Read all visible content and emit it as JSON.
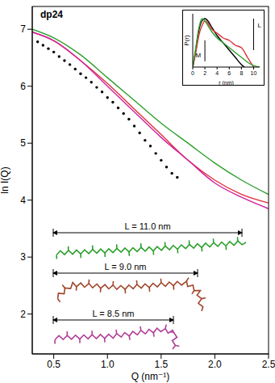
{
  "chart_data": [
    {
      "type": "line",
      "title": "dp24",
      "xlabel": "Q (nm⁻¹)",
      "ylabel": "ln I(Q)",
      "xlim": [
        0.3,
        2.5
      ],
      "xticks": [
        0.5,
        {
          "value": 1,
          "label": "1.0"
        },
        1.5,
        {
          "value": 2,
          "label": "2.0"
        },
        2.5
      ],
      "ylim": [
        1.3,
        7.4
      ],
      "yticks": [
        2,
        3,
        4,
        5,
        6,
        7
      ],
      "series": [
        {
          "type": "scatter",
          "color": "#000000",
          "marker": "circle",
          "x": [
            0.35,
            0.4,
            0.45,
            0.5,
            0.55,
            0.6,
            0.65,
            0.7,
            0.75,
            0.8,
            0.85,
            0.9,
            0.95,
            1.0,
            1.05,
            1.1,
            1.15,
            1.2,
            1.25,
            1.3,
            1.35,
            1.4,
            1.45,
            1.5,
            1.55,
            1.6,
            1.65
          ],
          "values": [
            6.78,
            6.72,
            6.66,
            6.6,
            6.52,
            6.45,
            6.38,
            6.3,
            6.22,
            6.15,
            6.07,
            5.98,
            5.9,
            5.8,
            5.72,
            5.62,
            5.52,
            5.42,
            5.3,
            5.18,
            5.05,
            4.95,
            4.82,
            4.7,
            4.58,
            4.47,
            4.4
          ]
        },
        {
          "type": "line",
          "color": "#2ca02c",
          "x": [
            0.3,
            0.5,
            0.75,
            1.0,
            1.25,
            1.5,
            1.75,
            2.0,
            2.25,
            2.5
          ],
          "values": [
            7.0,
            6.85,
            6.55,
            6.15,
            5.75,
            5.35,
            5.0,
            4.65,
            4.35,
            4.1
          ]
        },
        {
          "type": "line",
          "color": "#e0303a",
          "x": [
            0.3,
            0.5,
            0.75,
            1.0,
            1.25,
            1.5,
            1.75,
            2.0,
            2.25,
            2.5
          ],
          "values": [
            6.95,
            6.8,
            6.45,
            6.05,
            5.6,
            5.15,
            4.7,
            4.35,
            4.1,
            3.95
          ]
        },
        {
          "type": "line",
          "color": "#d020a0",
          "x": [
            0.3,
            0.5,
            0.75,
            1.0,
            1.25,
            1.5,
            1.75,
            2.0,
            2.25,
            2.5
          ],
          "values": [
            6.95,
            6.8,
            6.45,
            6.0,
            5.55,
            5.1,
            4.7,
            4.3,
            4.05,
            3.85
          ]
        }
      ],
      "annotations": [
        "L = 11.0 nm",
        "L = 9.0 nm",
        "L = 8.5 nm"
      ]
    },
    {
      "type": "line",
      "xlabel": "r (nm)",
      "ylabel": "P(r)",
      "xlim": [
        0,
        11
      ],
      "xticks": [
        0,
        2,
        4,
        6,
        8,
        10
      ],
      "ylim": [
        0,
        1.1
      ],
      "tick_labels": "x",
      "series": [
        {
          "type": "line",
          "color": "#000000",
          "x": [
            0,
            0.5,
            1,
            1.5,
            2,
            2.5,
            3,
            4,
            5,
            6,
            7,
            8,
            8.5
          ],
          "values": [
            0,
            0.35,
            0.75,
            0.95,
            1.0,
            0.95,
            0.85,
            0.65,
            0.5,
            0.35,
            0.2,
            0.05,
            0
          ]
        },
        {
          "type": "line",
          "color": "#e0303a",
          "x": [
            0,
            0.5,
            1,
            1.5,
            2,
            2.5,
            3,
            4,
            5,
            6,
            7,
            8,
            9,
            10
          ],
          "values": [
            0,
            0.3,
            0.65,
            0.85,
            0.95,
            0.9,
            0.8,
            0.7,
            0.6,
            0.55,
            0.45,
            0.4,
            0.2,
            0
          ]
        },
        {
          "type": "line",
          "color": "#2ca02c",
          "x": [
            0,
            0.5,
            1,
            1.5,
            2,
            3,
            4,
            5,
            6,
            7,
            8,
            9,
            10,
            11
          ],
          "values": [
            0,
            0.4,
            0.8,
            1.0,
            0.95,
            0.75,
            0.6,
            0.5,
            0.4,
            0.3,
            0.2,
            0.1,
            0.03,
            0
          ]
        }
      ],
      "annotations": [
        {
          "text": "M",
          "x": 2
        },
        {
          "text": "L",
          "x": 10
        }
      ]
    }
  ]
}
